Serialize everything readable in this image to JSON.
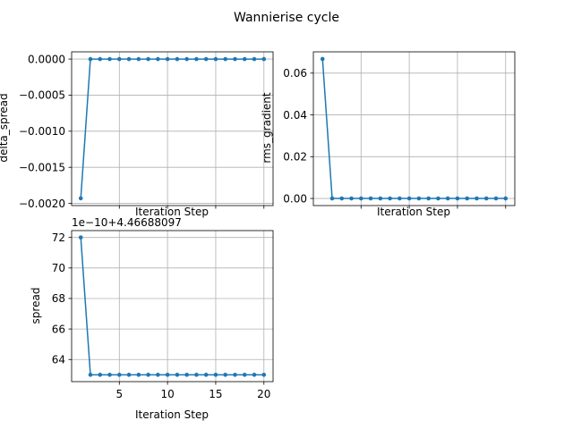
{
  "figure": {
    "title": "Wannierise cycle"
  },
  "colors": {
    "series": "#1f77b4",
    "grid": "#b0b0b0",
    "axes": "#000000",
    "background": "#ffffff"
  },
  "chart_data": [
    {
      "type": "line",
      "title": "",
      "xlabel": "Iteration Step",
      "ylabel": "delta_spread",
      "x": [
        1,
        2,
        3,
        4,
        5,
        6,
        7,
        8,
        9,
        10,
        11,
        12,
        13,
        14,
        15,
        16,
        17,
        18,
        19,
        20
      ],
      "series": [
        {
          "name": "",
          "values": [
            -0.00193,
            0,
            0,
            0,
            0,
            0,
            0,
            0,
            0,
            0,
            0,
            0,
            0,
            0,
            0,
            0,
            0,
            0,
            0,
            0
          ]
        }
      ],
      "xlim": [
        0.05,
        20.95
      ],
      "ylim": [
        -0.00203,
        0.0001
      ],
      "xticks": [
        5,
        10,
        15,
        20
      ],
      "xtick_labels": [
        "",
        "",
        "",
        ""
      ],
      "yticks": [
        -0.002,
        -0.0015,
        -0.001,
        -0.0005,
        0.0
      ],
      "ytick_labels": [
        "−0.0020",
        "−0.0015",
        "−0.0010",
        "−0.0005",
        "0.0000"
      ],
      "offset_text": "",
      "grid": true,
      "marker": "dot"
    },
    {
      "type": "line",
      "title": "",
      "xlabel": "Iteration Step",
      "ylabel": "rms_gradient",
      "x": [
        1,
        2,
        3,
        4,
        5,
        6,
        7,
        8,
        9,
        10,
        11,
        12,
        13,
        14,
        15,
        16,
        17,
        18,
        19,
        20
      ],
      "series": [
        {
          "name": "",
          "values": [
            0.0668,
            0,
            0,
            0,
            0,
            0,
            0,
            0,
            0,
            0,
            0,
            0,
            0,
            0,
            0,
            0,
            0,
            0,
            0,
            0
          ]
        }
      ],
      "xlim": [
        0.05,
        20.95
      ],
      "ylim": [
        -0.0034,
        0.0702
      ],
      "xticks": [
        5,
        10,
        15,
        20
      ],
      "xtick_labels": [
        "",
        "",
        "",
        ""
      ],
      "yticks": [
        0.0,
        0.02,
        0.04,
        0.06
      ],
      "ytick_labels": [
        "0.00",
        "0.02",
        "0.04",
        "0.06"
      ],
      "offset_text": "",
      "grid": true,
      "marker": "dot"
    },
    {
      "type": "line",
      "title": "",
      "xlabel": "Iteration Step",
      "ylabel": "spread",
      "x": [
        1,
        2,
        3,
        4,
        5,
        6,
        7,
        8,
        9,
        10,
        11,
        12,
        13,
        14,
        15,
        16,
        17,
        18,
        19,
        20
      ],
      "series": [
        {
          "name": "",
          "values": [
            72,
            63,
            63,
            63,
            63,
            63,
            63,
            63,
            63,
            63,
            63,
            63,
            63,
            63,
            63,
            63,
            63,
            63,
            63,
            63
          ]
        }
      ],
      "xlim": [
        0.05,
        20.95
      ],
      "ylim": [
        62.55,
        72.45
      ],
      "xticks": [
        5,
        10,
        15,
        20
      ],
      "xtick_labels": [
        "5",
        "10",
        "15",
        "20"
      ],
      "yticks": [
        64,
        66,
        68,
        70,
        72
      ],
      "ytick_labels": [
        "64",
        "66",
        "68",
        "70",
        "72"
      ],
      "offset_text": "1e−10+4.46688097",
      "grid": true,
      "marker": "dot"
    }
  ]
}
